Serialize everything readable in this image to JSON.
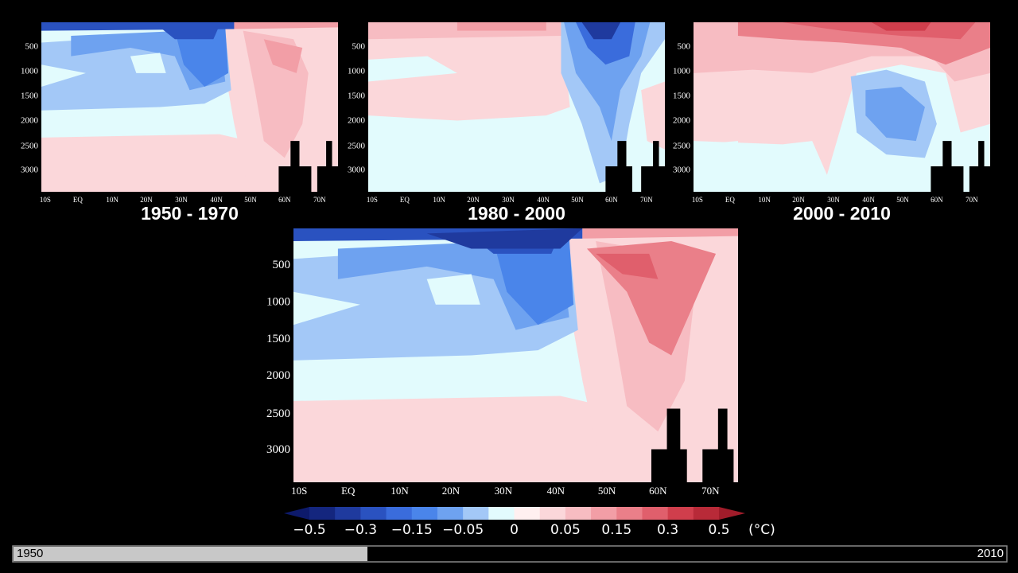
{
  "panels": [
    {
      "title": "1950 - 1970",
      "y_ticks": [
        "500",
        "1000",
        "1500",
        "2000",
        "2500",
        "3000"
      ],
      "x_ticks": [
        "10S",
        "EQ",
        "10N",
        "20N",
        "30N",
        "40N",
        "50N",
        "60N",
        "70N"
      ]
    },
    {
      "title": "1980 - 2000",
      "y_ticks": [
        "500",
        "1000",
        "1500",
        "2000",
        "2500",
        "3000"
      ],
      "x_ticks": [
        "10S",
        "EQ",
        "10N",
        "20N",
        "30N",
        "40N",
        "50N",
        "60N",
        "70N"
      ]
    },
    {
      "title": "2000 - 2010",
      "y_ticks": [
        "500",
        "1000",
        "1500",
        "2000",
        "2500",
        "3000"
      ],
      "x_ticks": [
        "10S",
        "EQ",
        "10N",
        "20N",
        "30N",
        "40N",
        "50N",
        "60N",
        "70N"
      ]
    }
  ],
  "main_panel": {
    "y_ticks": [
      "500",
      "1000",
      "1500",
      "2000",
      "2500",
      "3000"
    ],
    "x_ticks": [
      "10S",
      "EQ",
      "10N",
      "20N",
      "30N",
      "40N",
      "50N",
      "60N",
      "70N"
    ]
  },
  "colorbar": {
    "labels": [
      "−0.5",
      "−0.3",
      "−0.15",
      "−0.05",
      "0",
      "0.05",
      "0.15",
      "0.3",
      "0.5"
    ],
    "unit": "(°C)",
    "colors": [
      "#0d1a6b",
      "#14267e",
      "#1f3a9e",
      "#2a52c0",
      "#3a6cdc",
      "#4a85ea",
      "#6ea2f0",
      "#a3c8f7",
      "#e2fbfd",
      "#fff0f0",
      "#fbd7da",
      "#f7bcc2",
      "#f29ea6",
      "#ea7f89",
      "#e05f6c",
      "#d03e4c",
      "#b82a38",
      "#a01c2a"
    ]
  },
  "timeline": {
    "start": "1950",
    "end": "2010"
  }
}
